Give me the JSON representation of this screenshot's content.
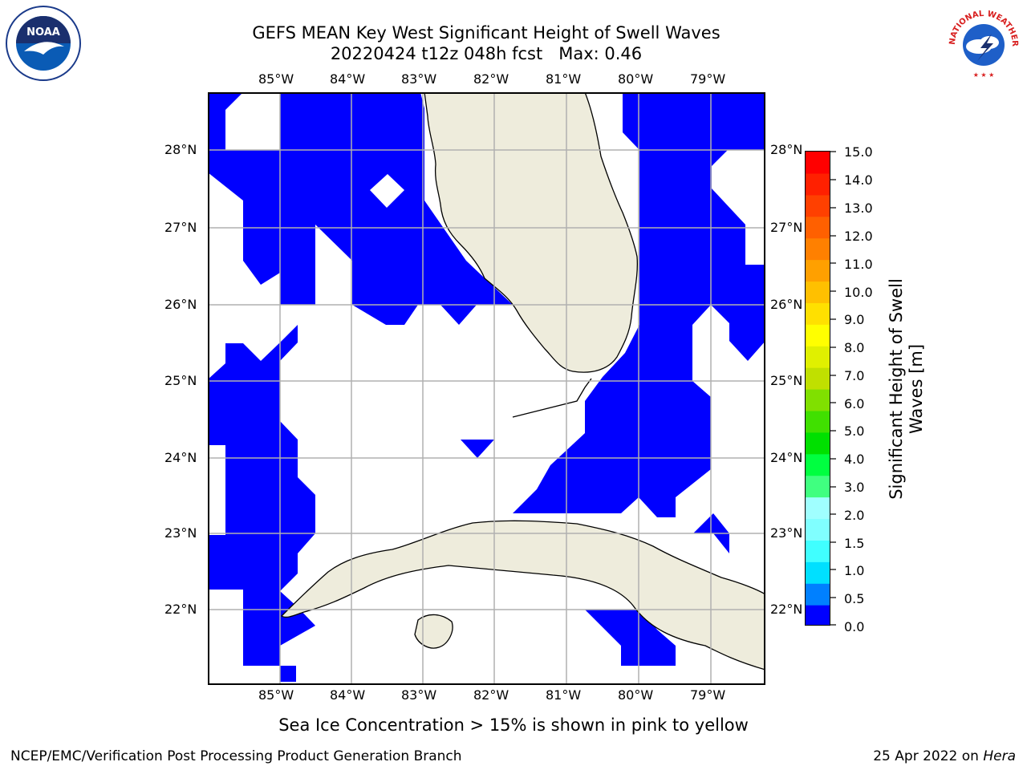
{
  "title": {
    "line1": "GEFS MEAN Key West Significant Height of Swell Waves",
    "line2": "20220424 t12z 048h fcst   Max: 0.46"
  },
  "map": {
    "lon_labels": [
      "85°W",
      "84°W",
      "83°W",
      "82°W",
      "81°W",
      "80°W",
      "79°W"
    ],
    "lat_labels": [
      "28°N",
      "27°N",
      "26°N",
      "25°N",
      "24°N",
      "23°N",
      "22°N"
    ],
    "colors": {
      "land": "#eeecdc",
      "swell": "#0000ff",
      "ocean": "#ffffff",
      "grid": "#b0b0b0"
    }
  },
  "colorbar": {
    "label_line1": "Significant Height of Swell",
    "label_line2": "Waves [m]",
    "ticks": [
      "15.0",
      "14.0",
      "13.0",
      "12.0",
      "11.0",
      "10.0",
      "9.0",
      "8.0",
      "7.0",
      "6.0",
      "5.0",
      "4.0",
      "3.0",
      "2.0",
      "1.5",
      "1.0",
      "0.5",
      "0.0"
    ],
    "colors": [
      "#0000ff",
      "#0080ff",
      "#00e0ff",
      "#40ffff",
      "#80ffff",
      "#a0ffff",
      "#40ff80",
      "#00ff40",
      "#00e000",
      "#40e000",
      "#80e000",
      "#c0e000",
      "#e0f000",
      "#ffff00",
      "#ffe000",
      "#ffc000",
      "#ffa000",
      "#ff8000",
      "#ff6000",
      "#ff4000",
      "#ff2000",
      "#ff0000"
    ]
  },
  "logos": {
    "noaa": "NOAA",
    "nws": "NATIONAL WEATHER SERVICE"
  },
  "note": "Sea Ice Concentration > 15% is shown in pink to yellow",
  "footer": {
    "left": "NCEP/EMC/Verification Post Processing Product Generation Branch",
    "date": "25 Apr 2022 on ",
    "machine": "Hera"
  }
}
